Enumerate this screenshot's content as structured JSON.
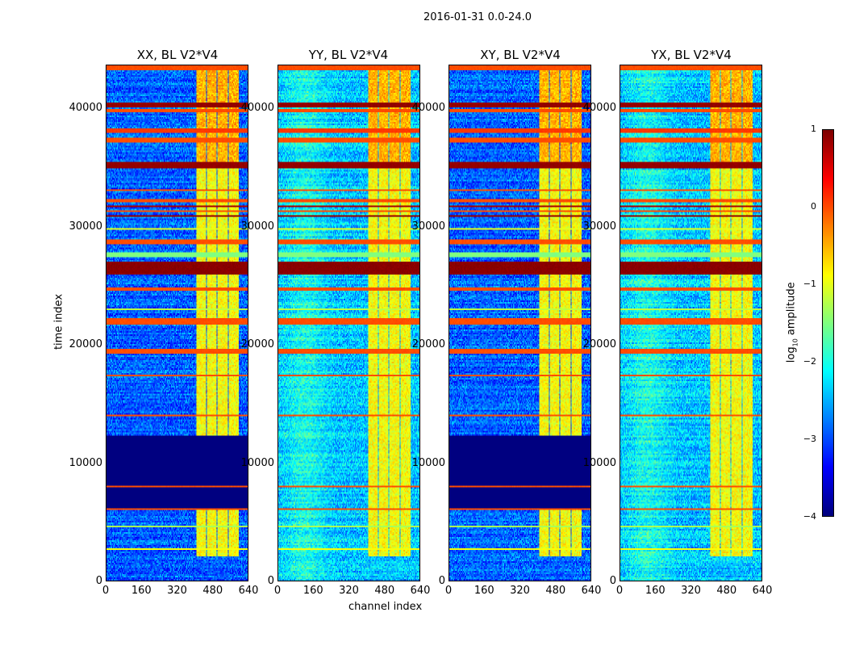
{
  "chart_data": {
    "type": "heatmap",
    "title": "2016-01-31 0.0-24.0",
    "xlabel": "channel index",
    "ylabel": "time index",
    "xlim": [
      0,
      640
    ],
    "ylim": [
      0,
      43700
    ],
    "xticks": [
      "0",
      "160",
      "320",
      "480",
      "640"
    ],
    "xtick_values": [
      0,
      160,
      320,
      480,
      640
    ],
    "yticks": [
      "0",
      "10000",
      "20000",
      "30000",
      "40000"
    ],
    "ytick_values": [
      0,
      10000,
      20000,
      30000,
      40000
    ],
    "colorbar": {
      "label": "log10 amplitude",
      "label_main": "log",
      "label_sub": "10",
      "label_rest": " amplitude",
      "vmin": -4,
      "vmax": 1,
      "ticks": [
        "1",
        "0",
        "−1",
        "−2",
        "−3",
        "−4"
      ],
      "tick_values": [
        1,
        0,
        -1,
        -2,
        -3,
        -4
      ],
      "colormap": "jet"
    },
    "panels": [
      {
        "title": "XX, BL V2*V4",
        "background": -2.9,
        "flagged_block": true
      },
      {
        "title": "YY, BL V2*V4",
        "background": -2.4,
        "flagged_block": false
      },
      {
        "title": "XY, BL V2*V4",
        "background": -2.9,
        "flagged_block": true
      },
      {
        "title": "YX, BL V2*V4",
        "background": -2.4,
        "flagged_block": false
      }
    ],
    "flagged_block_range": [
      6000,
      12300
    ],
    "rfi_channels": [
      [
        405,
        450
      ],
      [
        455,
        497
      ],
      [
        502,
        548
      ],
      [
        553,
        600
      ]
    ],
    "rfi_level": -0.9,
    "time_bands": [
      {
        "t0": 43350,
        "t1": 43700,
        "value": 0.0
      },
      {
        "t0": 40200,
        "t1": 40550,
        "value": 0.9
      },
      {
        "t0": 39750,
        "t1": 40000,
        "value": 0.0
      },
      {
        "t0": 37900,
        "t1": 38400,
        "value": 0.1
      },
      {
        "t0": 37100,
        "t1": 37500,
        "value": 0.0
      },
      {
        "t0": 35000,
        "t1": 35500,
        "value": 0.9
      },
      {
        "t0": 33000,
        "t1": 33150,
        "value": 0.0
      },
      {
        "t0": 32100,
        "t1": 32300,
        "value": 0.0
      },
      {
        "t0": 31700,
        "t1": 31850,
        "value": 0.8
      },
      {
        "t0": 31300,
        "t1": 31450,
        "value": 0.0
      },
      {
        "t0": 30900,
        "t1": 31000,
        "value": 0.9
      },
      {
        "t0": 29800,
        "t1": 29950,
        "value": -1.0
      },
      {
        "t0": 28600,
        "t1": 28900,
        "value": 0.0
      },
      {
        "t0": 27500,
        "t1": 27800,
        "value": -1.5
      },
      {
        "t0": 25900,
        "t1": 27000,
        "value": 0.95
      },
      {
        "t0": 24550,
        "t1": 24800,
        "value": 0.0
      },
      {
        "t0": 23000,
        "t1": 23100,
        "value": -1.2
      },
      {
        "t0": 21700,
        "t1": 22200,
        "value": 0.0
      },
      {
        "t0": 19300,
        "t1": 19600,
        "value": 0.0
      },
      {
        "t0": 17300,
        "t1": 17500,
        "value": 0.0
      },
      {
        "t0": 16900,
        "t1": 17000,
        "value": -1.5
      },
      {
        "t0": 13900,
        "t1": 14050,
        "value": 0.0
      },
      {
        "t0": 7900,
        "t1": 8050,
        "value": 0.0
      },
      {
        "t0": 6050,
        "t1": 6200,
        "value": 0.0
      },
      {
        "t0": 4500,
        "t1": 4600,
        "value": -1.3
      },
      {
        "t0": 2650,
        "t1": 2750,
        "value": -0.9
      }
    ]
  }
}
